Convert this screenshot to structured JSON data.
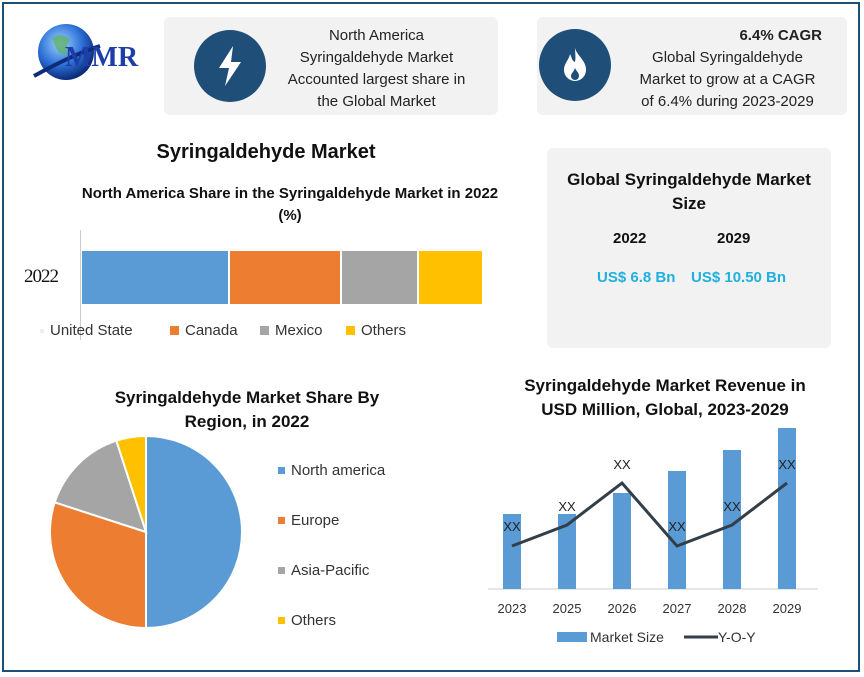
{
  "logo": {
    "text": "MMR"
  },
  "card1": {
    "icon": "lightning-icon",
    "lines": [
      "North America",
      "Syringaldehyde  Market",
      "Accounted largest share in",
      "the Global Market"
    ]
  },
  "card2": {
    "icon": "flame-icon",
    "heading": "6.4% CAGR",
    "lines": [
      "Global Syringaldehyde",
      "Market to grow at a CAGR",
      "of 6.4% during  2023-2029"
    ]
  },
  "market_size": {
    "title": "Global Syringaldehyde Market Size",
    "year1": "2022",
    "year2": "2029",
    "value1": "US$ 6.8 Bn",
    "value2": "US$ 10.50 Bn",
    "value_color": "#1fb0e0"
  },
  "colors": {
    "frame": "#1f4e79",
    "blue": "#5b9bd5",
    "orange": "#ed7d31",
    "gray": "#a5a5a5",
    "yellow": "#ffc000",
    "line": "#333f48"
  },
  "chart_data": [
    {
      "type": "bar",
      "stacked": true,
      "orientation": "horizontal",
      "main_title": "Syringaldehyde Market",
      "title": "North America Share in the Syringaldehyde Market in 2022 (%)",
      "categories": [
        "2022"
      ],
      "series": [
        {
          "name": "United State",
          "values": [
            37
          ]
        },
        {
          "name": "Canada",
          "values": [
            28
          ]
        },
        {
          "name": "Mexico",
          "values": [
            19
          ]
        },
        {
          "name": "Others",
          "values": [
            16
          ]
        }
      ],
      "legend": "bottom"
    },
    {
      "type": "pie",
      "title": "Syringaldehyde Market Share By Region, in 2022",
      "labels": [
        "North america",
        "Europe",
        "Asia-Pacific",
        "Others"
      ],
      "values": [
        50,
        30,
        15,
        5
      ],
      "legend": "right"
    },
    {
      "type": "bar",
      "title": "Syringaldehyde Market Revenue in USD Million, Global, 2023-2029",
      "categories": [
        "2023",
        "2025",
        "2026",
        "2027",
        "2028",
        "2029"
      ],
      "series": [
        {
          "name": "Market Size",
          "type": "bar",
          "values": [
            75,
            75,
            96,
            118,
            139,
            161
          ],
          "labels": [
            "XX",
            "XX",
            "XX",
            "XX",
            "XX",
            "XX"
          ]
        },
        {
          "name": "Y-O-Y",
          "type": "line",
          "values": [
            43,
            64,
            106,
            43,
            64,
            106
          ]
        }
      ],
      "legend": "bottom",
      "grid": false
    }
  ]
}
